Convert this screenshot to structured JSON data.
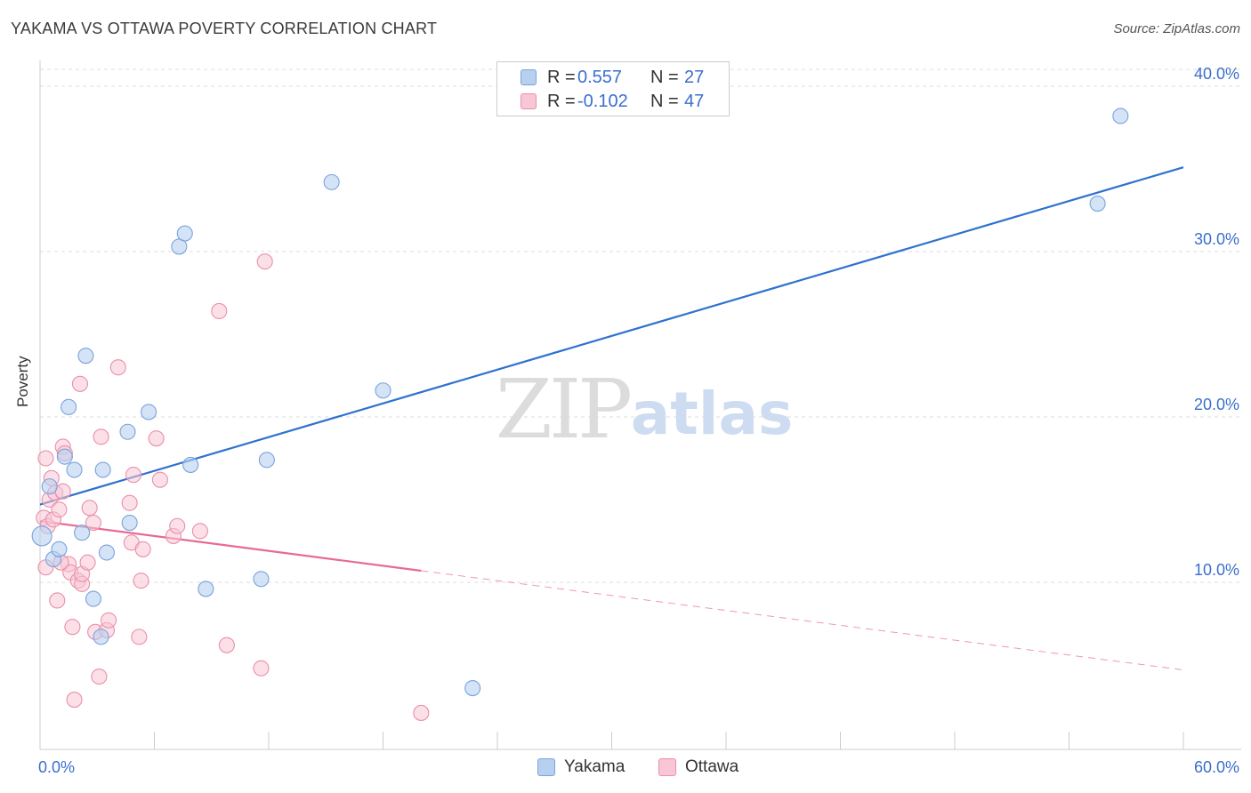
{
  "title": "YAKAMA VS OTTAWA POVERTY CORRELATION CHART",
  "source": "Source: ZipAtlas.com",
  "watermark": {
    "zip": "ZIP",
    "atlas": "atlas"
  },
  "colors": {
    "yakama_fill": "#b8d0f0",
    "yakama_stroke": "#7aa3dc",
    "yakama_line": "#2f72cf",
    "ottawa_fill": "#f8c6d5",
    "ottawa_stroke": "#ea8fab",
    "ottawa_line": "#e86a93",
    "axis_text": "#3a6fcc",
    "grid": "#dddddd"
  },
  "legend": {
    "rows": [
      {
        "r_label": "R =",
        "r_value": "0.557",
        "n_label": "N =",
        "n_value": "27"
      },
      {
        "r_label": "R =",
        "r_value": "-0.102",
        "n_label": "N =",
        "n_value": "47"
      }
    ]
  },
  "bottom_legend": {
    "yakama": "Yakama",
    "ottawa": "Ottawa"
  },
  "chart_data": {
    "type": "scatter",
    "title": "YAKAMA VS OTTAWA POVERTY CORRELATION CHART",
    "xlabel": "",
    "ylabel": "Poverty",
    "xlim": [
      0,
      60
    ],
    "ylim": [
      0,
      40
    ],
    "x_tick_labels": [
      "0.0%",
      "60.0%"
    ],
    "y_ticks": [
      10,
      20,
      30,
      40
    ],
    "y_tick_labels": [
      "10.0%",
      "20.0%",
      "30.0%",
      "40.0%"
    ],
    "grid": true,
    "series": [
      {
        "name": "Yakama",
        "points": [
          [
            0.1,
            12.8
          ],
          [
            0.5,
            15.8
          ],
          [
            0.7,
            11.4
          ],
          [
            1.0,
            12.0
          ],
          [
            1.3,
            17.6
          ],
          [
            1.5,
            20.6
          ],
          [
            1.8,
            16.8
          ],
          [
            2.2,
            13.0
          ],
          [
            2.4,
            23.7
          ],
          [
            2.8,
            9.0
          ],
          [
            3.2,
            6.7
          ],
          [
            3.3,
            16.8
          ],
          [
            3.5,
            11.8
          ],
          [
            4.6,
            19.1
          ],
          [
            4.7,
            13.6
          ],
          [
            5.7,
            20.3
          ],
          [
            7.3,
            30.3
          ],
          [
            7.6,
            31.1
          ],
          [
            7.9,
            17.1
          ],
          [
            8.7,
            9.6
          ],
          [
            11.6,
            10.2
          ],
          [
            11.9,
            17.4
          ],
          [
            15.3,
            34.2
          ],
          [
            18.0,
            21.6
          ],
          [
            22.7,
            3.6
          ],
          [
            55.5,
            32.9
          ],
          [
            56.7,
            38.2
          ]
        ],
        "trend": {
          "x": [
            0,
            60
          ],
          "y": [
            14.7,
            35.1
          ]
        }
      },
      {
        "name": "Ottawa",
        "points": [
          [
            0.2,
            13.9
          ],
          [
            0.3,
            17.5
          ],
          [
            0.4,
            13.4
          ],
          [
            0.5,
            15.0
          ],
          [
            0.6,
            16.3
          ],
          [
            0.7,
            13.8
          ],
          [
            0.8,
            15.4
          ],
          [
            0.9,
            8.9
          ],
          [
            1.0,
            14.4
          ],
          [
            1.2,
            15.5
          ],
          [
            1.2,
            18.2
          ],
          [
            1.3,
            17.8
          ],
          [
            1.5,
            11.1
          ],
          [
            1.6,
            10.6
          ],
          [
            1.7,
            7.3
          ],
          [
            1.8,
            2.9
          ],
          [
            2.0,
            10.1
          ],
          [
            2.1,
            22.0
          ],
          [
            2.2,
            9.9
          ],
          [
            2.2,
            10.5
          ],
          [
            2.6,
            14.5
          ],
          [
            2.8,
            13.6
          ],
          [
            2.9,
            7.0
          ],
          [
            3.1,
            4.3
          ],
          [
            3.2,
            18.8
          ],
          [
            3.5,
            7.1
          ],
          [
            3.6,
            7.7
          ],
          [
            4.1,
            23.0
          ],
          [
            4.7,
            14.8
          ],
          [
            4.8,
            12.4
          ],
          [
            4.9,
            16.5
          ],
          [
            5.2,
            6.7
          ],
          [
            5.3,
            10.1
          ],
          [
            5.4,
            12.0
          ],
          [
            6.1,
            18.7
          ],
          [
            6.3,
            16.2
          ],
          [
            7.0,
            12.8
          ],
          [
            7.2,
            13.4
          ],
          [
            8.4,
            13.1
          ],
          [
            9.4,
            26.4
          ],
          [
            9.8,
            6.2
          ],
          [
            11.6,
            4.8
          ],
          [
            11.8,
            29.4
          ],
          [
            20.0,
            2.1
          ],
          [
            0.3,
            10.9
          ],
          [
            1.1,
            11.2
          ],
          [
            2.5,
            11.2
          ]
        ],
        "trend": {
          "x": [
            0,
            20
          ],
          "y": [
            13.7,
            10.7
          ]
        },
        "trend_dashed": {
          "x": [
            20,
            60
          ],
          "y": [
            10.7,
            4.7
          ]
        }
      }
    ]
  }
}
